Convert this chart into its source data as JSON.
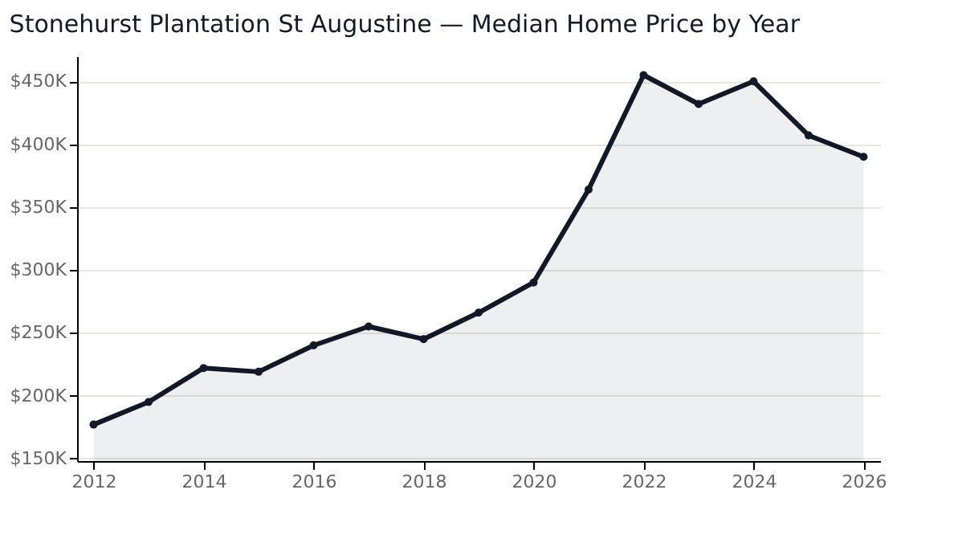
{
  "chart_data": {
    "type": "area",
    "title": "Stonehurst Plantation St Augustine — Median Home Price by Year",
    "x": [
      2012,
      2013,
      2014,
      2015,
      2016,
      2017,
      2018,
      2019,
      2020,
      2021,
      2022,
      2023,
      2024,
      2025,
      2026
    ],
    "series": [
      {
        "color": "#111827",
        "values": [
          177,
          195,
          222,
          219,
          240,
          255,
          245,
          266,
          290,
          364,
          455,
          432,
          450,
          407,
          390
        ]
      }
    ],
    "xlim": [
      2011.7,
      2026.3
    ],
    "xticks": [
      2012,
      2014,
      2016,
      2018,
      2020,
      2022,
      2024,
      2026
    ],
    "ylim": [
      148,
      470
    ],
    "yticks": [
      {
        "value": 150,
        "label": "$150K"
      },
      {
        "value": 200,
        "label": "$200K"
      },
      {
        "value": 250,
        "label": "$250K"
      },
      {
        "value": 300,
        "label": "$300K"
      },
      {
        "value": 350,
        "label": "$350K"
      },
      {
        "value": 400,
        "label": "$400K"
      },
      {
        "value": 450,
        "label": "$450K"
      }
    ],
    "grid": "y",
    "marker": "circle",
    "line_style": "solid"
  }
}
